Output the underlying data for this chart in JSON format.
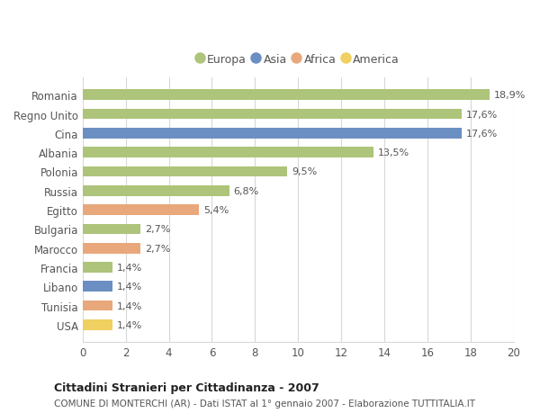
{
  "categories": [
    "Romania",
    "Regno Unito",
    "Cina",
    "Albania",
    "Polonia",
    "Russia",
    "Egitto",
    "Bulgaria",
    "Marocco",
    "Francia",
    "Libano",
    "Tunisia",
    "USA"
  ],
  "values": [
    18.9,
    17.6,
    17.6,
    13.5,
    9.5,
    6.8,
    5.4,
    2.7,
    2.7,
    1.4,
    1.4,
    1.4,
    1.4
  ],
  "labels": [
    "18,9%",
    "17,6%",
    "17,6%",
    "13,5%",
    "9,5%",
    "6,8%",
    "5,4%",
    "2,7%",
    "2,7%",
    "1,4%",
    "1,4%",
    "1,4%",
    "1,4%"
  ],
  "continent": [
    "Europa",
    "Europa",
    "Asia",
    "Europa",
    "Europa",
    "Europa",
    "Africa",
    "Europa",
    "Africa",
    "Europa",
    "Asia",
    "Africa",
    "America"
  ],
  "colors": {
    "Europa": "#adc47a",
    "Asia": "#6b8fc2",
    "Africa": "#e8a87c",
    "America": "#f0d060"
  },
  "legend_order": [
    "Europa",
    "Asia",
    "Africa",
    "America"
  ],
  "xlim": [
    0,
    20
  ],
  "xticks": [
    0,
    2,
    4,
    6,
    8,
    10,
    12,
    14,
    16,
    18,
    20
  ],
  "title": "Cittadini Stranieri per Cittadinanza - 2007",
  "subtitle": "COMUNE DI MONTERCHI (AR) - Dati ISTAT al 1° gennaio 2007 - Elaborazione TUTTITALIA.IT",
  "background_color": "#ffffff",
  "grid_color": "#d8d8d8",
  "bar_height": 0.55
}
